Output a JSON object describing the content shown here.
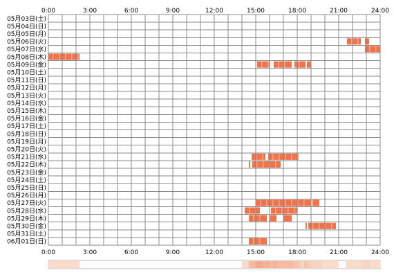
{
  "chart_data": {
    "type": "heatmap",
    "title": "",
    "xlabel": "",
    "ylabel": "",
    "xlim": [
      0,
      24
    ],
    "x_ticks": [
      "0:00",
      "3:00",
      "6:00",
      "9:00",
      "12:00",
      "15:00",
      "18:00",
      "21:00",
      "24:00"
    ],
    "grid": true,
    "colors": {
      "grid": "#888888",
      "bar_dark": "#f2734a",
      "bar_light": "#f7a98a",
      "summary_light": "#fde3d6",
      "summary_border": "#bbbbbb"
    },
    "rows": [
      {
        "label": "05月03日(土)",
        "segments": []
      },
      {
        "label": "05月04日(日)",
        "segments": []
      },
      {
        "label": "05月05日(月)",
        "segments": []
      },
      {
        "label": "05月06日(火)",
        "segments": [
          [
            21.6,
            22.6
          ],
          [
            22.9,
            23.2
          ]
        ]
      },
      {
        "label": "05月07日(水)",
        "segments": [
          [
            22.9,
            24.0
          ]
        ]
      },
      {
        "label": "05月08日(木)",
        "segments": [
          [
            0.0,
            2.25
          ]
        ]
      },
      {
        "label": "05月09日(金)",
        "segments": [
          [
            15.1,
            16.0
          ],
          [
            16.3,
            17.6
          ],
          [
            17.8,
            18.6
          ],
          [
            18.7,
            19.0
          ]
        ]
      },
      {
        "label": "05月10日(土)",
        "segments": []
      },
      {
        "label": "05月11日(日)",
        "segments": []
      },
      {
        "label": "05月12日(月)",
        "segments": []
      },
      {
        "label": "05月13日(火)",
        "segments": []
      },
      {
        "label": "05月14日(水)",
        "segments": []
      },
      {
        "label": "05月15日(木)",
        "segments": []
      },
      {
        "label": "05月16日(金)",
        "segments": []
      },
      {
        "label": "05月17日(土)",
        "segments": []
      },
      {
        "label": "05月18日(日)",
        "segments": []
      },
      {
        "label": "05月19日(月)",
        "segments": []
      },
      {
        "label": "05月20日(火)",
        "segments": []
      },
      {
        "label": "05月21日(水)",
        "segments": [
          [
            14.7,
            15.7
          ],
          [
            15.9,
            18.1
          ]
        ]
      },
      {
        "label": "05月22日(木)",
        "segments": [
          [
            14.5,
            14.6
          ],
          [
            14.75,
            16.8
          ]
        ]
      },
      {
        "label": "05月23日(金)",
        "segments": []
      },
      {
        "label": "05月24日(土)",
        "segments": []
      },
      {
        "label": "05月25日(日)",
        "segments": []
      },
      {
        "label": "05月26日(月)",
        "segments": []
      },
      {
        "label": "05月27日(火)",
        "segments": [
          [
            15.0,
            19.0
          ],
          [
            19.1,
            19.6
          ]
        ]
      },
      {
        "label": "05月28日(水)",
        "segments": [
          [
            14.2,
            15.3
          ],
          [
            16.1,
            18.0
          ]
        ]
      },
      {
        "label": "05月29日(木)",
        "segments": [
          [
            14.5,
            15.8
          ],
          [
            16.0,
            16.5
          ],
          [
            17.0,
            17.6
          ]
        ]
      },
      {
        "label": "05月30日(金)",
        "segments": [
          [
            18.6,
            18.7
          ],
          [
            18.8,
            20.8
          ]
        ]
      },
      {
        "label": "05月31日(土)",
        "segments": []
      },
      {
        "label": "06月01日(日)",
        "segments": [
          [
            14.5,
            15.8
          ]
        ]
      }
    ]
  }
}
